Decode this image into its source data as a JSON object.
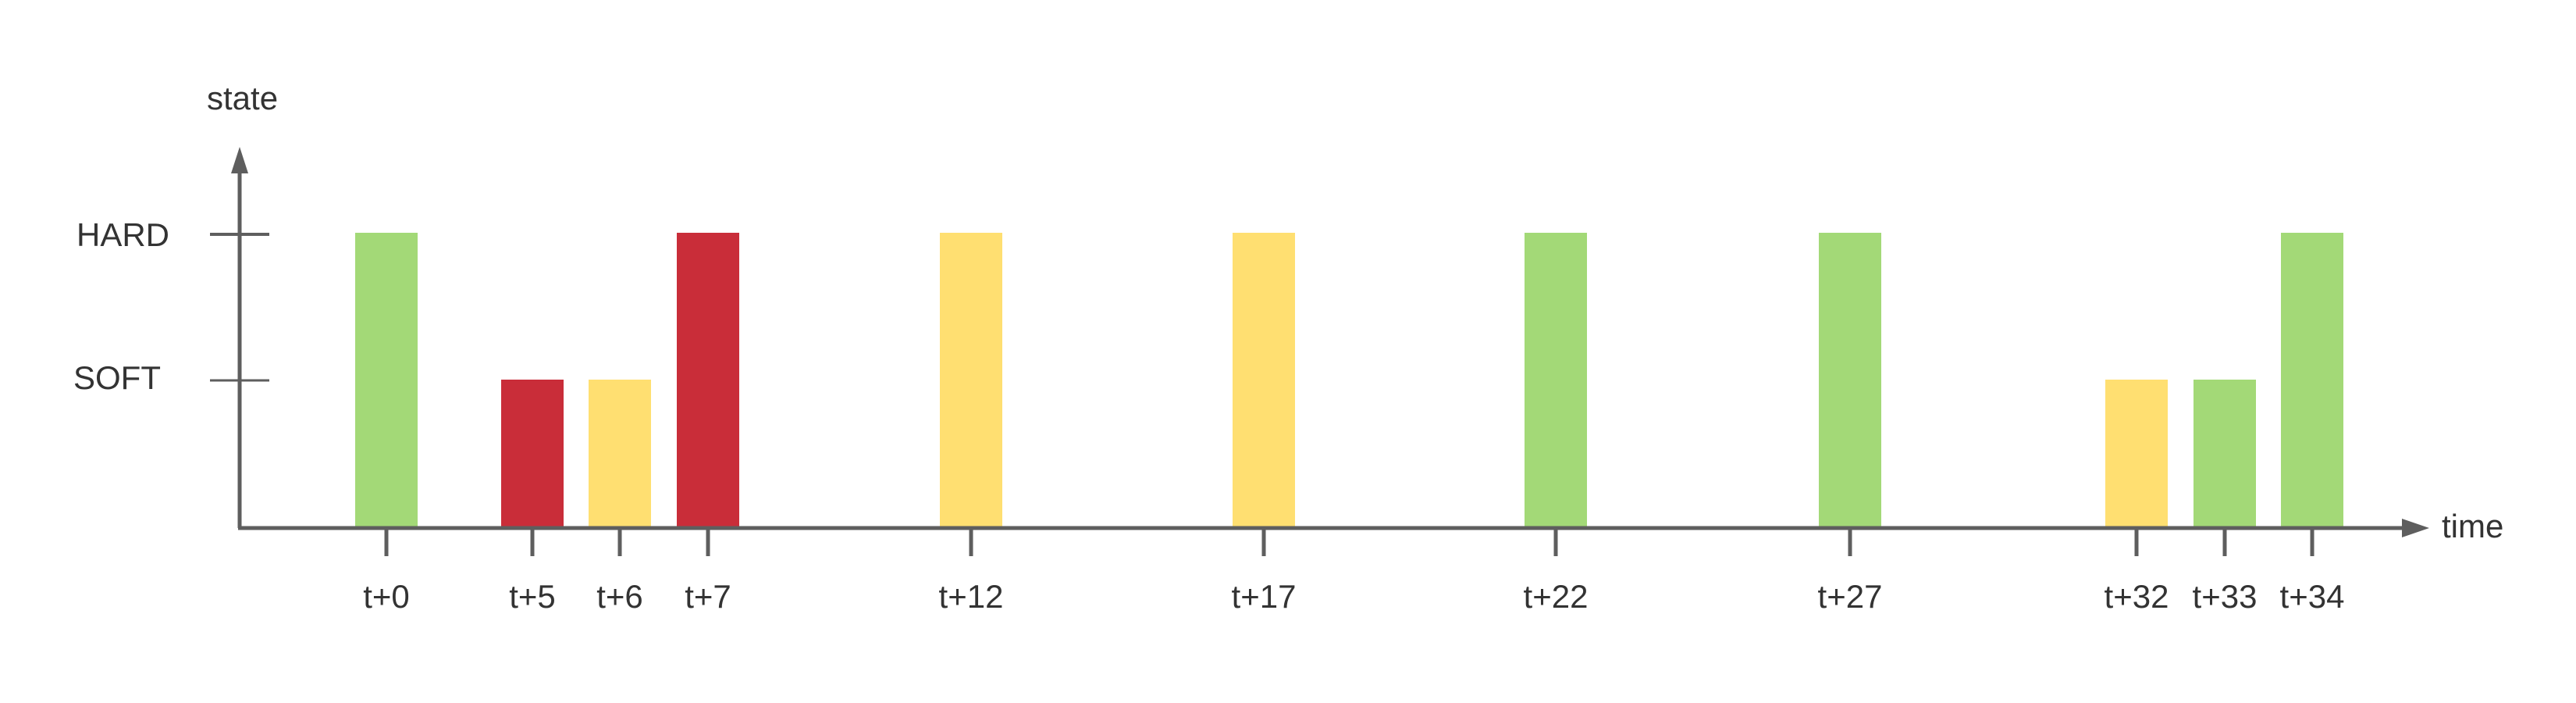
{
  "chart_data": {
    "type": "bar",
    "xlabel": "time",
    "ylabel": "state",
    "y_levels": [
      "SOFT",
      "HARD"
    ],
    "categories": [
      "t+0",
      "t+5",
      "t+6",
      "t+7",
      "t+12",
      "t+17",
      "t+22",
      "t+27",
      "t+32",
      "t+33",
      "t+34"
    ],
    "values": [
      "HARD",
      "SOFT",
      "SOFT",
      "HARD",
      "HARD",
      "HARD",
      "HARD",
      "HARD",
      "SOFT",
      "SOFT",
      "HARD"
    ],
    "bar_colors": [
      "green",
      "red",
      "yellow",
      "red",
      "yellow",
      "yellow",
      "green",
      "green",
      "yellow",
      "green",
      "green"
    ],
    "grid": false,
    "legend": "none"
  },
  "colors": {
    "green": "#a3d977",
    "red": "#c92d39",
    "yellow": "#ffdf71",
    "axis": "#5e5e5e"
  }
}
